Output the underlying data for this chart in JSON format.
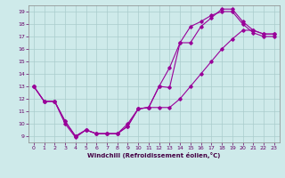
{
  "xlabel": "Windchill (Refroidissement éolien,°C)",
  "background_color": "#ceeaea",
  "line_color": "#990099",
  "grid_color": "#aacccc",
  "xlim": [
    -0.5,
    23.5
  ],
  "ylim": [
    8.5,
    19.5
  ],
  "xticks": [
    0,
    1,
    2,
    3,
    4,
    5,
    6,
    7,
    8,
    9,
    10,
    11,
    12,
    13,
    14,
    15,
    16,
    17,
    18,
    19,
    20,
    21,
    22,
    23
  ],
  "yticks": [
    9,
    10,
    11,
    12,
    13,
    14,
    15,
    16,
    17,
    18,
    19
  ],
  "line1_x": [
    0,
    1,
    2,
    3,
    4,
    5,
    6,
    7,
    8,
    9,
    10,
    11,
    12,
    13,
    14,
    15,
    16,
    17,
    18,
    19,
    20,
    21,
    22,
    23
  ],
  "line1_y": [
    13,
    11.8,
    11.8,
    10.2,
    9.0,
    9.5,
    9.2,
    9.2,
    9.2,
    9.8,
    11.2,
    11.3,
    13.0,
    14.5,
    16.5,
    17.8,
    18.2,
    18.7,
    19.0,
    19.0,
    18.0,
    17.3,
    17.0,
    17.0
  ],
  "line2_x": [
    0,
    1,
    2,
    3,
    4,
    5,
    6,
    7,
    8,
    9,
    10,
    11,
    12,
    13,
    14,
    15,
    16,
    17,
    18,
    19,
    20,
    21,
    22,
    23
  ],
  "line2_y": [
    13,
    11.8,
    11.8,
    10.0,
    8.9,
    9.5,
    9.2,
    9.2,
    9.2,
    10.0,
    11.2,
    11.3,
    13.0,
    12.9,
    16.5,
    16.5,
    17.8,
    18.5,
    19.2,
    19.2,
    18.2,
    17.5,
    17.2,
    17.2
  ],
  "line3_x": [
    0,
    1,
    2,
    3,
    4,
    5,
    6,
    7,
    8,
    9,
    10,
    11,
    12,
    13,
    14,
    15,
    16,
    17,
    18,
    19,
    20,
    21,
    22,
    23
  ],
  "line3_y": [
    13,
    11.8,
    11.8,
    10.2,
    9.0,
    9.5,
    9.2,
    9.2,
    9.2,
    9.8,
    11.2,
    11.3,
    11.3,
    11.3,
    12.0,
    13.0,
    14.0,
    15.0,
    16.0,
    16.8,
    17.5,
    17.5,
    17.2,
    17.2
  ]
}
